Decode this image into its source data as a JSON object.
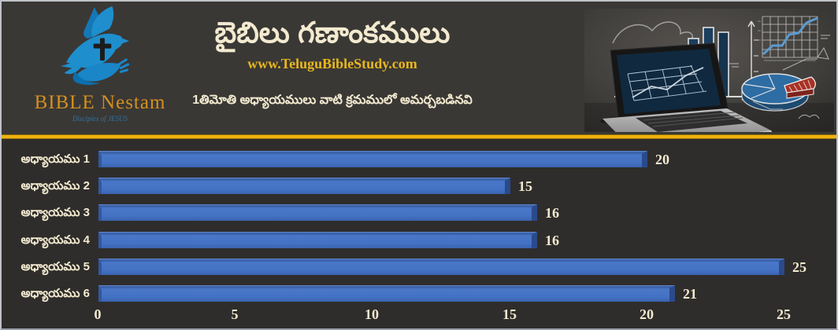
{
  "colors": {
    "bg_header": "#3a3835",
    "bg_chart": "#2f2d2b",
    "gold_divider": "#efb310",
    "cream_text": "#f3ead0",
    "url_gold": "#e9b71d",
    "logo_gold": "#d4901f",
    "logo_blue": "#1f8ecd",
    "bar_blue": "#4472c4"
  },
  "header": {
    "logo_name": "BIBLE Nestam",
    "logo_tagline": "Disciples of JESUS",
    "title": "బైబిలు గణాంకములు",
    "website": "www.TeluguBibleStudy.com",
    "subtitle": "1తిమోతి అధ్యాయములు వాటి క్రమములో అమర్చబడినవి"
  },
  "chart_data": {
    "type": "bar",
    "orientation": "horizontal",
    "title": "బైబిలు గణాంకములు",
    "categories": [
      "అధ్యాయము 1",
      "అధ్యాయము 2",
      "అధ్యాయము 3",
      "అధ్యాయము 4",
      "అధ్యాయము 5",
      "అధ్యాయము 6"
    ],
    "values": [
      20,
      15,
      16,
      16,
      25,
      21
    ],
    "x_ticks": [
      0,
      5,
      10,
      15,
      20,
      25
    ],
    "xlim": [
      0,
      25
    ],
    "data_labels": true,
    "grid": false,
    "legend": false,
    "bar_color": "#4472c4",
    "label_color": "#f3ead0"
  }
}
